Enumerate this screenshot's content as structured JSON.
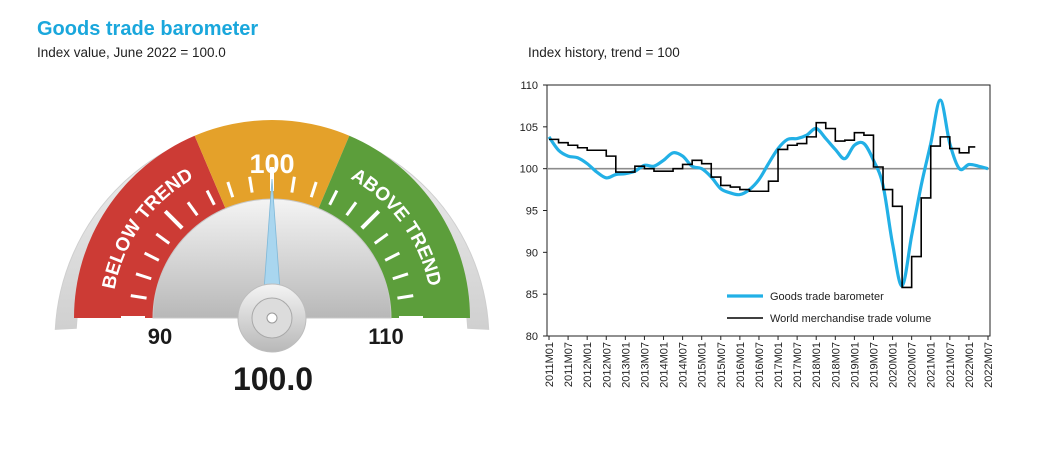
{
  "header": {
    "title": "Goods trade barometer",
    "subtitle": "Index value, June 2022 = 100.0"
  },
  "gauge": {
    "value": 100.0,
    "value_label": "100.0",
    "min": 90,
    "max": 110,
    "min_label": "90",
    "max_label": "110",
    "center_label": "100",
    "below_label": "BELOW TREND",
    "above_label": "ABOVE TREND",
    "colors": {
      "below": "#cc3b35",
      "trend": "#e4a12a",
      "above": "#5c9e3b",
      "needle": "#a9d6ef"
    }
  },
  "history": {
    "title": "Index history, trend = 100"
  },
  "chart_data": {
    "type": "line",
    "title": "Index history, trend = 100",
    "xlabel": "",
    "ylabel": "",
    "ylim": [
      80,
      110
    ],
    "yticks": [
      80,
      85,
      90,
      95,
      100,
      105,
      110
    ],
    "xtick_labels": [
      "2011M01",
      "2011M07",
      "2012M01",
      "2012M07",
      "2013M01",
      "2013M07",
      "2014M01",
      "2014M07",
      "2015M01",
      "2015M07",
      "2016M01",
      "2016M07",
      "2017M01",
      "2017M07",
      "2018M01",
      "2018M07",
      "2019M01",
      "2019M07",
      "2020M01",
      "2020M07",
      "2021M01",
      "2021M07",
      "2022M01",
      "2022M07"
    ],
    "reference_line": 100,
    "legend_position": "bottom-right",
    "series": [
      {
        "name": "Goods trade barometer",
        "color": "#22b0e6",
        "points": [
          [
            "2011M01",
            103.8
          ],
          [
            "2011M04",
            102.2
          ],
          [
            "2011M07",
            101.5
          ],
          [
            "2011M10",
            101.3
          ],
          [
            "2012M01",
            100.6
          ],
          [
            "2012M04",
            99.6
          ],
          [
            "2012M07",
            98.9
          ],
          [
            "2012M10",
            99.3
          ],
          [
            "2013M01",
            99.4
          ],
          [
            "2013M04",
            99.7
          ],
          [
            "2013M07",
            100.4
          ],
          [
            "2013M10",
            100.3
          ],
          [
            "2014M01",
            101.0
          ],
          [
            "2014M04",
            101.9
          ],
          [
            "2014M07",
            101.5
          ],
          [
            "2014M10",
            100.3
          ],
          [
            "2015M01",
            100.0
          ],
          [
            "2015M04",
            99.0
          ],
          [
            "2015M07",
            97.6
          ],
          [
            "2015M10",
            97.1
          ],
          [
            "2016M01",
            96.9
          ],
          [
            "2016M04",
            97.5
          ],
          [
            "2016M07",
            98.7
          ],
          [
            "2016M10",
            100.6
          ],
          [
            "2017M01",
            102.4
          ],
          [
            "2017M04",
            103.5
          ],
          [
            "2017M07",
            103.6
          ],
          [
            "2017M10",
            104.0
          ],
          [
            "2018M01",
            104.8
          ],
          [
            "2018M04",
            103.6
          ],
          [
            "2018M07",
            102.3
          ],
          [
            "2018M10",
            101.2
          ],
          [
            "2019M01",
            102.8
          ],
          [
            "2019M04",
            103.0
          ],
          [
            "2019M07",
            101.0
          ],
          [
            "2019M10",
            98.0
          ],
          [
            "2020M01",
            91.0
          ],
          [
            "2020M04",
            86.0
          ],
          [
            "2020M07",
            92.0
          ],
          [
            "2020M10",
            98.0
          ],
          [
            "2021M01",
            103.0
          ],
          [
            "2021M04",
            108.2
          ],
          [
            "2021M07",
            103.0
          ],
          [
            "2021M10",
            100.0
          ],
          [
            "2022M01",
            100.5
          ],
          [
            "2022M04",
            100.3
          ],
          [
            "2022M07",
            100.0
          ]
        ]
      },
      {
        "name": "World merchandise trade volume",
        "color": "#000000",
        "points": [
          [
            "2011M01",
            103.5
          ],
          [
            "2011M04",
            103.1
          ],
          [
            "2011M07",
            102.8
          ],
          [
            "2011M10",
            102.5
          ],
          [
            "2012M01",
            102.2
          ],
          [
            "2012M04",
            102.2
          ],
          [
            "2012M07",
            101.5
          ],
          [
            "2012M10",
            99.6
          ],
          [
            "2013M01",
            99.6
          ],
          [
            "2013M04",
            100.3
          ],
          [
            "2013M07",
            100.0
          ],
          [
            "2013M10",
            99.7
          ],
          [
            "2014M01",
            99.7
          ],
          [
            "2014M04",
            100.0
          ],
          [
            "2014M07",
            100.5
          ],
          [
            "2014M10",
            101.0
          ],
          [
            "2015M01",
            100.6
          ],
          [
            "2015M04",
            99.0
          ],
          [
            "2015M07",
            98.0
          ],
          [
            "2015M10",
            97.8
          ],
          [
            "2016M01",
            97.5
          ],
          [
            "2016M04",
            97.3
          ],
          [
            "2016M07",
            97.3
          ],
          [
            "2016M10",
            98.5
          ],
          [
            "2017M01",
            102.3
          ],
          [
            "2017M04",
            102.8
          ],
          [
            "2017M07",
            103.0
          ],
          [
            "2017M10",
            103.8
          ],
          [
            "2018M01",
            105.5
          ],
          [
            "2018M04",
            104.8
          ],
          [
            "2018M07",
            103.3
          ],
          [
            "2018M10",
            103.4
          ],
          [
            "2019M01",
            104.3
          ],
          [
            "2019M04",
            104.0
          ],
          [
            "2019M07",
            100.2
          ],
          [
            "2019M10",
            97.5
          ],
          [
            "2020M01",
            95.5
          ],
          [
            "2020M04",
            85.8
          ],
          [
            "2020M07",
            89.5
          ],
          [
            "2020M10",
            96.5
          ],
          [
            "2021M01",
            102.7
          ],
          [
            "2021M04",
            103.8
          ],
          [
            "2021M07",
            102.4
          ],
          [
            "2021M10",
            101.9
          ],
          [
            "2022M01",
            102.6
          ],
          [
            "2022M03",
            102.6
          ]
        ]
      }
    ]
  }
}
